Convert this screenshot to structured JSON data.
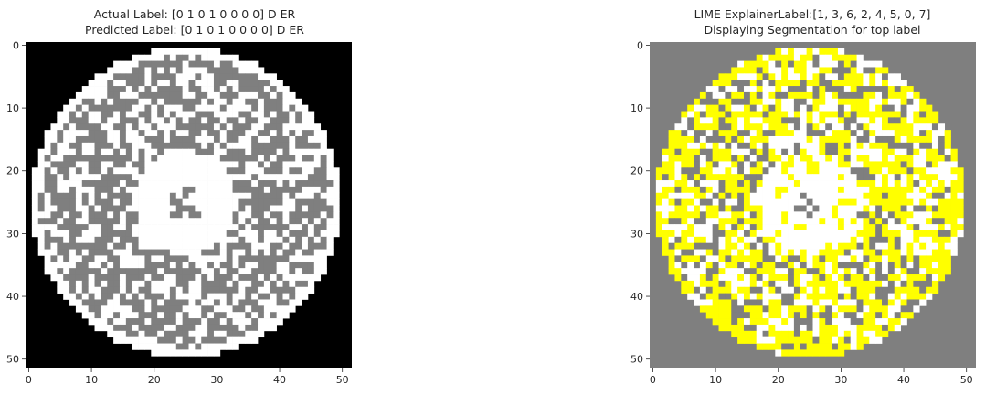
{
  "chart_data": [
    {
      "type": "heatmap",
      "title_lines": [
        "Actual Label: [0 1 0 1 0 0 0 0] D ER",
        "Predicted Label: [0 1 0 1 0 0 0 0] D ER"
      ],
      "grid_size": 52,
      "xlim": [
        -0.5,
        51.5
      ],
      "ylim": [
        51.5,
        -0.5
      ],
      "x_ticks": [
        0,
        10,
        20,
        30,
        40,
        50
      ],
      "y_ticks": [
        0,
        10,
        20,
        30,
        40,
        50
      ],
      "grid": false,
      "colors": {
        "background": "#000000",
        "failed_die": "#7f7f7f",
        "passed_die": "#ffffff"
      },
      "wafer": {
        "center": [
          25.5,
          25.5
        ],
        "radius": 24.6,
        "center_cluster_radius": 8.2,
        "fail_fraction": 0.58,
        "seed": 17
      }
    },
    {
      "type": "heatmap",
      "title_lines": [
        "LIME ExplainerLabel:[1, 3, 6, 2, 4, 5, 0, 7]",
        "Displaying Segmentation for top label"
      ],
      "grid_size": 52,
      "xlim": [
        -0.5,
        51.5
      ],
      "ylim": [
        51.5,
        -0.5
      ],
      "x_ticks": [
        0,
        10,
        20,
        30,
        40,
        50
      ],
      "y_ticks": [
        0,
        10,
        20,
        30,
        40,
        50
      ],
      "grid": false,
      "colors": {
        "background": "#7f7f7f",
        "boundary": "#ffff00",
        "region": "#ffffff",
        "masked": "#7f7f7f"
      },
      "wafer": {
        "center": [
          25.5,
          25.5
        ],
        "radius": 24.6,
        "center_cluster_radius": 8.2,
        "boundary_fraction": 0.45,
        "seed": 29
      }
    }
  ]
}
